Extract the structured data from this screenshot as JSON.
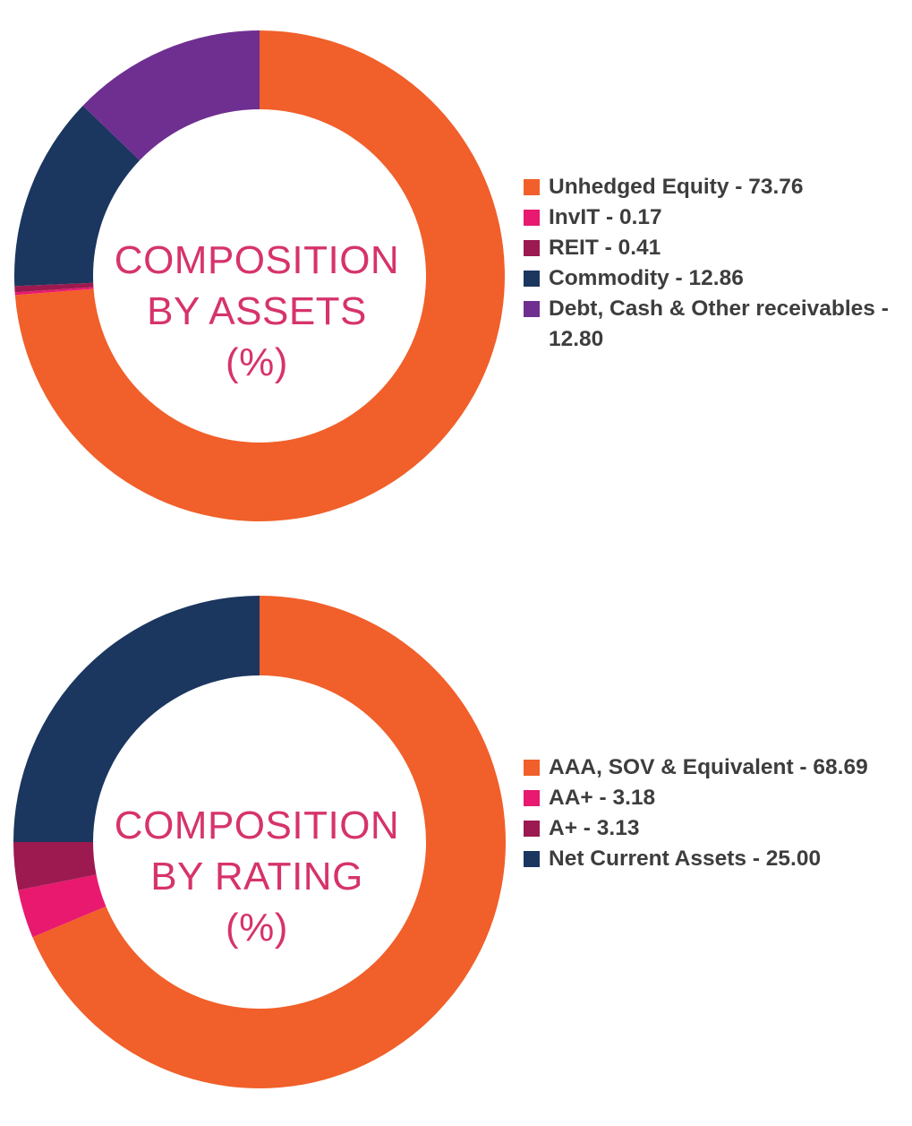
{
  "chart_data": [
    {
      "type": "pie",
      "title": "COMPOSITION BY ASSETS (%)",
      "title_lines": [
        "COMPOSITION",
        "BY ASSETS",
        "(%)"
      ],
      "slices": [
        {
          "label": "Unhedged Equity - 73.76",
          "value": 73.76,
          "color": "#f15f2a"
        },
        {
          "label": "InvIT - 0.17",
          "value": 0.17,
          "color": "#e8196f"
        },
        {
          "label": "REIT - 0.41",
          "value": 0.41,
          "color": "#9c1a4f"
        },
        {
          "label": "Commodity - 12.86",
          "value": 12.86,
          "color": "#1b365f"
        },
        {
          "label": "Debt, Cash & Other receivables - 12.80",
          "value": 12.8,
          "color": "#6e2f91"
        }
      ],
      "legend_position": "right"
    },
    {
      "type": "pie",
      "title": "COMPOSITION BY RATING (%)",
      "title_lines": [
        "COMPOSITION",
        "BY RATING",
        "(%)"
      ],
      "slices": [
        {
          "label": "AAA, SOV & Equivalent - 68.69",
          "value": 68.69,
          "color": "#f15f2a"
        },
        {
          "label": "AA+ - 3.18",
          "value": 3.18,
          "color": "#e8196f"
        },
        {
          "label": "A+ - 3.13",
          "value": 3.13,
          "color": "#9c1a4f"
        },
        {
          "label": "Net Current Assets - 25.00",
          "value": 25.0,
          "color": "#1b365f"
        }
      ],
      "legend_position": "right"
    }
  ],
  "title_color": "#d6336c"
}
